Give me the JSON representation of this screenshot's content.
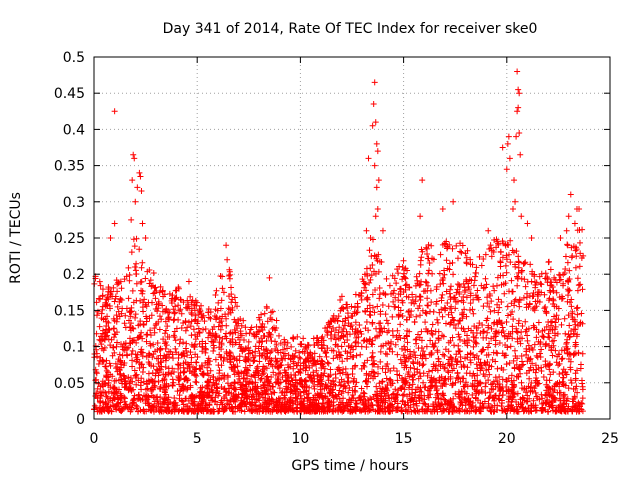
{
  "chart_data": {
    "type": "scatter",
    "title": "Day 341 of 2014, Rate Of TEC Index for receiver ske0",
    "xlabel": "GPS time / hours",
    "ylabel": "ROTI / TECUs",
    "xlim": [
      0,
      25
    ],
    "ylim": [
      0,
      0.5
    ],
    "xticks": [
      0,
      5,
      10,
      15,
      20,
      25
    ],
    "xtick_labels": [
      "0",
      "5",
      "10",
      "15",
      "20",
      "25"
    ],
    "yticks": [
      0,
      0.05,
      0.1,
      0.15,
      0.2,
      0.25,
      0.3,
      0.35,
      0.4,
      0.45,
      0.5
    ],
    "ytick_labels": [
      "0",
      "0.05",
      "0.1",
      "0.15",
      "0.2",
      "0.25",
      "0.3",
      "0.35",
      "0.4",
      "0.45",
      "0.5"
    ],
    "grid": true,
    "marker": "+",
    "color": "#ff0000",
    "envelope": {
      "hours": [
        0,
        0.5,
        1,
        1.5,
        2,
        2.5,
        3,
        3.5,
        4,
        4.5,
        5,
        5.5,
        6,
        6.5,
        7,
        7.5,
        8,
        8.5,
        9,
        9.5,
        10,
        10.5,
        11,
        11.5,
        12,
        12.5,
        13,
        13.5,
        14,
        14.5,
        15,
        15.5,
        16,
        16.5,
        17,
        17.5,
        18,
        18.5,
        19,
        19.5,
        20,
        20.5,
        21,
        21.5,
        22,
        22.5,
        23,
        23.5
      ],
      "max_roti": [
        0.21,
        0.18,
        0.19,
        0.2,
        0.26,
        0.22,
        0.2,
        0.17,
        0.19,
        0.17,
        0.17,
        0.16,
        0.19,
        0.22,
        0.15,
        0.12,
        0.15,
        0.16,
        0.13,
        0.11,
        0.12,
        0.11,
        0.12,
        0.14,
        0.17,
        0.16,
        0.2,
        0.25,
        0.22,
        0.2,
        0.22,
        0.18,
        0.28,
        0.22,
        0.25,
        0.24,
        0.25,
        0.22,
        0.24,
        0.25,
        0.25,
        0.24,
        0.22,
        0.2,
        0.22,
        0.2,
        0.25,
        0.27
      ]
    },
    "points": [
      {
        "x": 1.0,
        "y": 0.425
      },
      {
        "x": 1.0,
        "y": 0.27
      },
      {
        "x": 0.8,
        "y": 0.25
      },
      {
        "x": 1.9,
        "y": 0.365
      },
      {
        "x": 1.95,
        "y": 0.36
      },
      {
        "x": 1.85,
        "y": 0.33
      },
      {
        "x": 2.0,
        "y": 0.3
      },
      {
        "x": 2.2,
        "y": 0.34
      },
      {
        "x": 2.25,
        "y": 0.335
      },
      {
        "x": 2.3,
        "y": 0.315
      },
      {
        "x": 2.1,
        "y": 0.32
      },
      {
        "x": 2.35,
        "y": 0.27
      },
      {
        "x": 1.8,
        "y": 0.275
      },
      {
        "x": 2.5,
        "y": 0.25
      },
      {
        "x": 6.4,
        "y": 0.24
      },
      {
        "x": 6.45,
        "y": 0.22
      },
      {
        "x": 8.5,
        "y": 0.195
      },
      {
        "x": 4.6,
        "y": 0.19
      },
      {
        "x": 13.6,
        "y": 0.465
      },
      {
        "x": 13.55,
        "y": 0.435
      },
      {
        "x": 13.65,
        "y": 0.41
      },
      {
        "x": 13.5,
        "y": 0.405
      },
      {
        "x": 13.7,
        "y": 0.38
      },
      {
        "x": 13.75,
        "y": 0.37
      },
      {
        "x": 13.6,
        "y": 0.35
      },
      {
        "x": 13.3,
        "y": 0.36
      },
      {
        "x": 13.8,
        "y": 0.33
      },
      {
        "x": 13.7,
        "y": 0.32
      },
      {
        "x": 13.75,
        "y": 0.29
      },
      {
        "x": 13.65,
        "y": 0.28
      },
      {
        "x": 13.2,
        "y": 0.26
      },
      {
        "x": 13.4,
        "y": 0.25
      },
      {
        "x": 15.9,
        "y": 0.33
      },
      {
        "x": 16.9,
        "y": 0.29
      },
      {
        "x": 15.8,
        "y": 0.28
      },
      {
        "x": 17.4,
        "y": 0.3
      },
      {
        "x": 14.0,
        "y": 0.26
      },
      {
        "x": 19.1,
        "y": 0.26
      },
      {
        "x": 20.5,
        "y": 0.48
      },
      {
        "x": 20.55,
        "y": 0.455
      },
      {
        "x": 20.6,
        "y": 0.45
      },
      {
        "x": 20.55,
        "y": 0.43
      },
      {
        "x": 20.5,
        "y": 0.425
      },
      {
        "x": 20.45,
        "y": 0.39
      },
      {
        "x": 20.6,
        "y": 0.395
      },
      {
        "x": 20.1,
        "y": 0.39
      },
      {
        "x": 20.05,
        "y": 0.38
      },
      {
        "x": 19.8,
        "y": 0.375
      },
      {
        "x": 20.15,
        "y": 0.36
      },
      {
        "x": 20.65,
        "y": 0.365
      },
      {
        "x": 20.35,
        "y": 0.33
      },
      {
        "x": 20.0,
        "y": 0.345
      },
      {
        "x": 20.4,
        "y": 0.3
      },
      {
        "x": 20.3,
        "y": 0.29
      },
      {
        "x": 20.7,
        "y": 0.28
      },
      {
        "x": 21.0,
        "y": 0.27
      },
      {
        "x": 21.2,
        "y": 0.25
      },
      {
        "x": 23.1,
        "y": 0.31
      },
      {
        "x": 23.4,
        "y": 0.29
      },
      {
        "x": 23.5,
        "y": 0.29
      },
      {
        "x": 23.3,
        "y": 0.27
      },
      {
        "x": 22.9,
        "y": 0.26
      },
      {
        "x": 23.0,
        "y": 0.28
      },
      {
        "x": 22.6,
        "y": 0.25
      }
    ]
  }
}
